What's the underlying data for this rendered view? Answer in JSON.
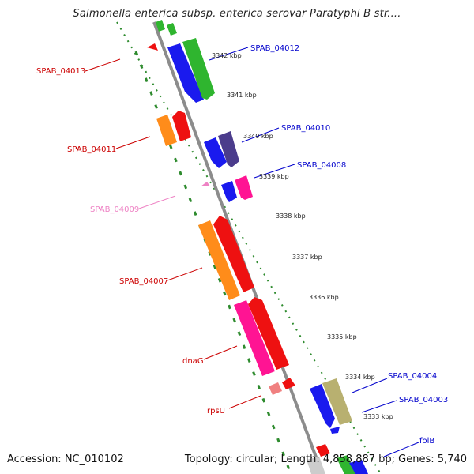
{
  "header": {
    "title": "Salmonella enterica subsp. enterica serovar Paratyphi B str...."
  },
  "footer": {
    "accession": "Accession: NC_010102",
    "topology": "Topology: circular; Length: 4,858,887 bp; Genes: 5,740"
  },
  "ticks": [
    "3342 kbp",
    "3341 kbp",
    "3340 kbp",
    "3339 kbp",
    "3338 kbp",
    "3337 kbp",
    "3336 kbp",
    "3335 kbp",
    "3334 kbp",
    "3333 kbp"
  ],
  "genes": [
    {
      "label": "SPAB_04013",
      "color": "#cc0000"
    },
    {
      "label": "SPAB_04012",
      "color": "#0000cc"
    },
    {
      "label": "SPAB_04011",
      "color": "#cc0000"
    },
    {
      "label": "SPAB_04010",
      "color": "#0000cc"
    },
    {
      "label": "SPAB_04008",
      "color": "#0000cc"
    },
    {
      "label": "SPAB_04009",
      "color": "#ee82c4"
    },
    {
      "label": "SPAB_04007",
      "color": "#cc0000"
    },
    {
      "label": "dnaG",
      "color": "#cc0000"
    },
    {
      "label": "rpsU",
      "color": "#cc0000"
    },
    {
      "label": "SPAB_04004",
      "color": "#0000cc"
    },
    {
      "label": "SPAB_04003",
      "color": "#0000cc"
    },
    {
      "label": "folB",
      "color": "#0000cc"
    }
  ],
  "colors": {
    "backbone": "#8c8c8c",
    "dotted_guides": "#2e8b2e",
    "blue_feature": "#1a1aee",
    "green_feature": "#2fb52f",
    "red_feature": "#ee1111",
    "orange_feature": "#ff8c1a",
    "pink_feature": "#ff1493",
    "indigo_feature": "#4b3c8c",
    "olive_feature": "#b8b070",
    "salmon_feature": "#f08080"
  }
}
